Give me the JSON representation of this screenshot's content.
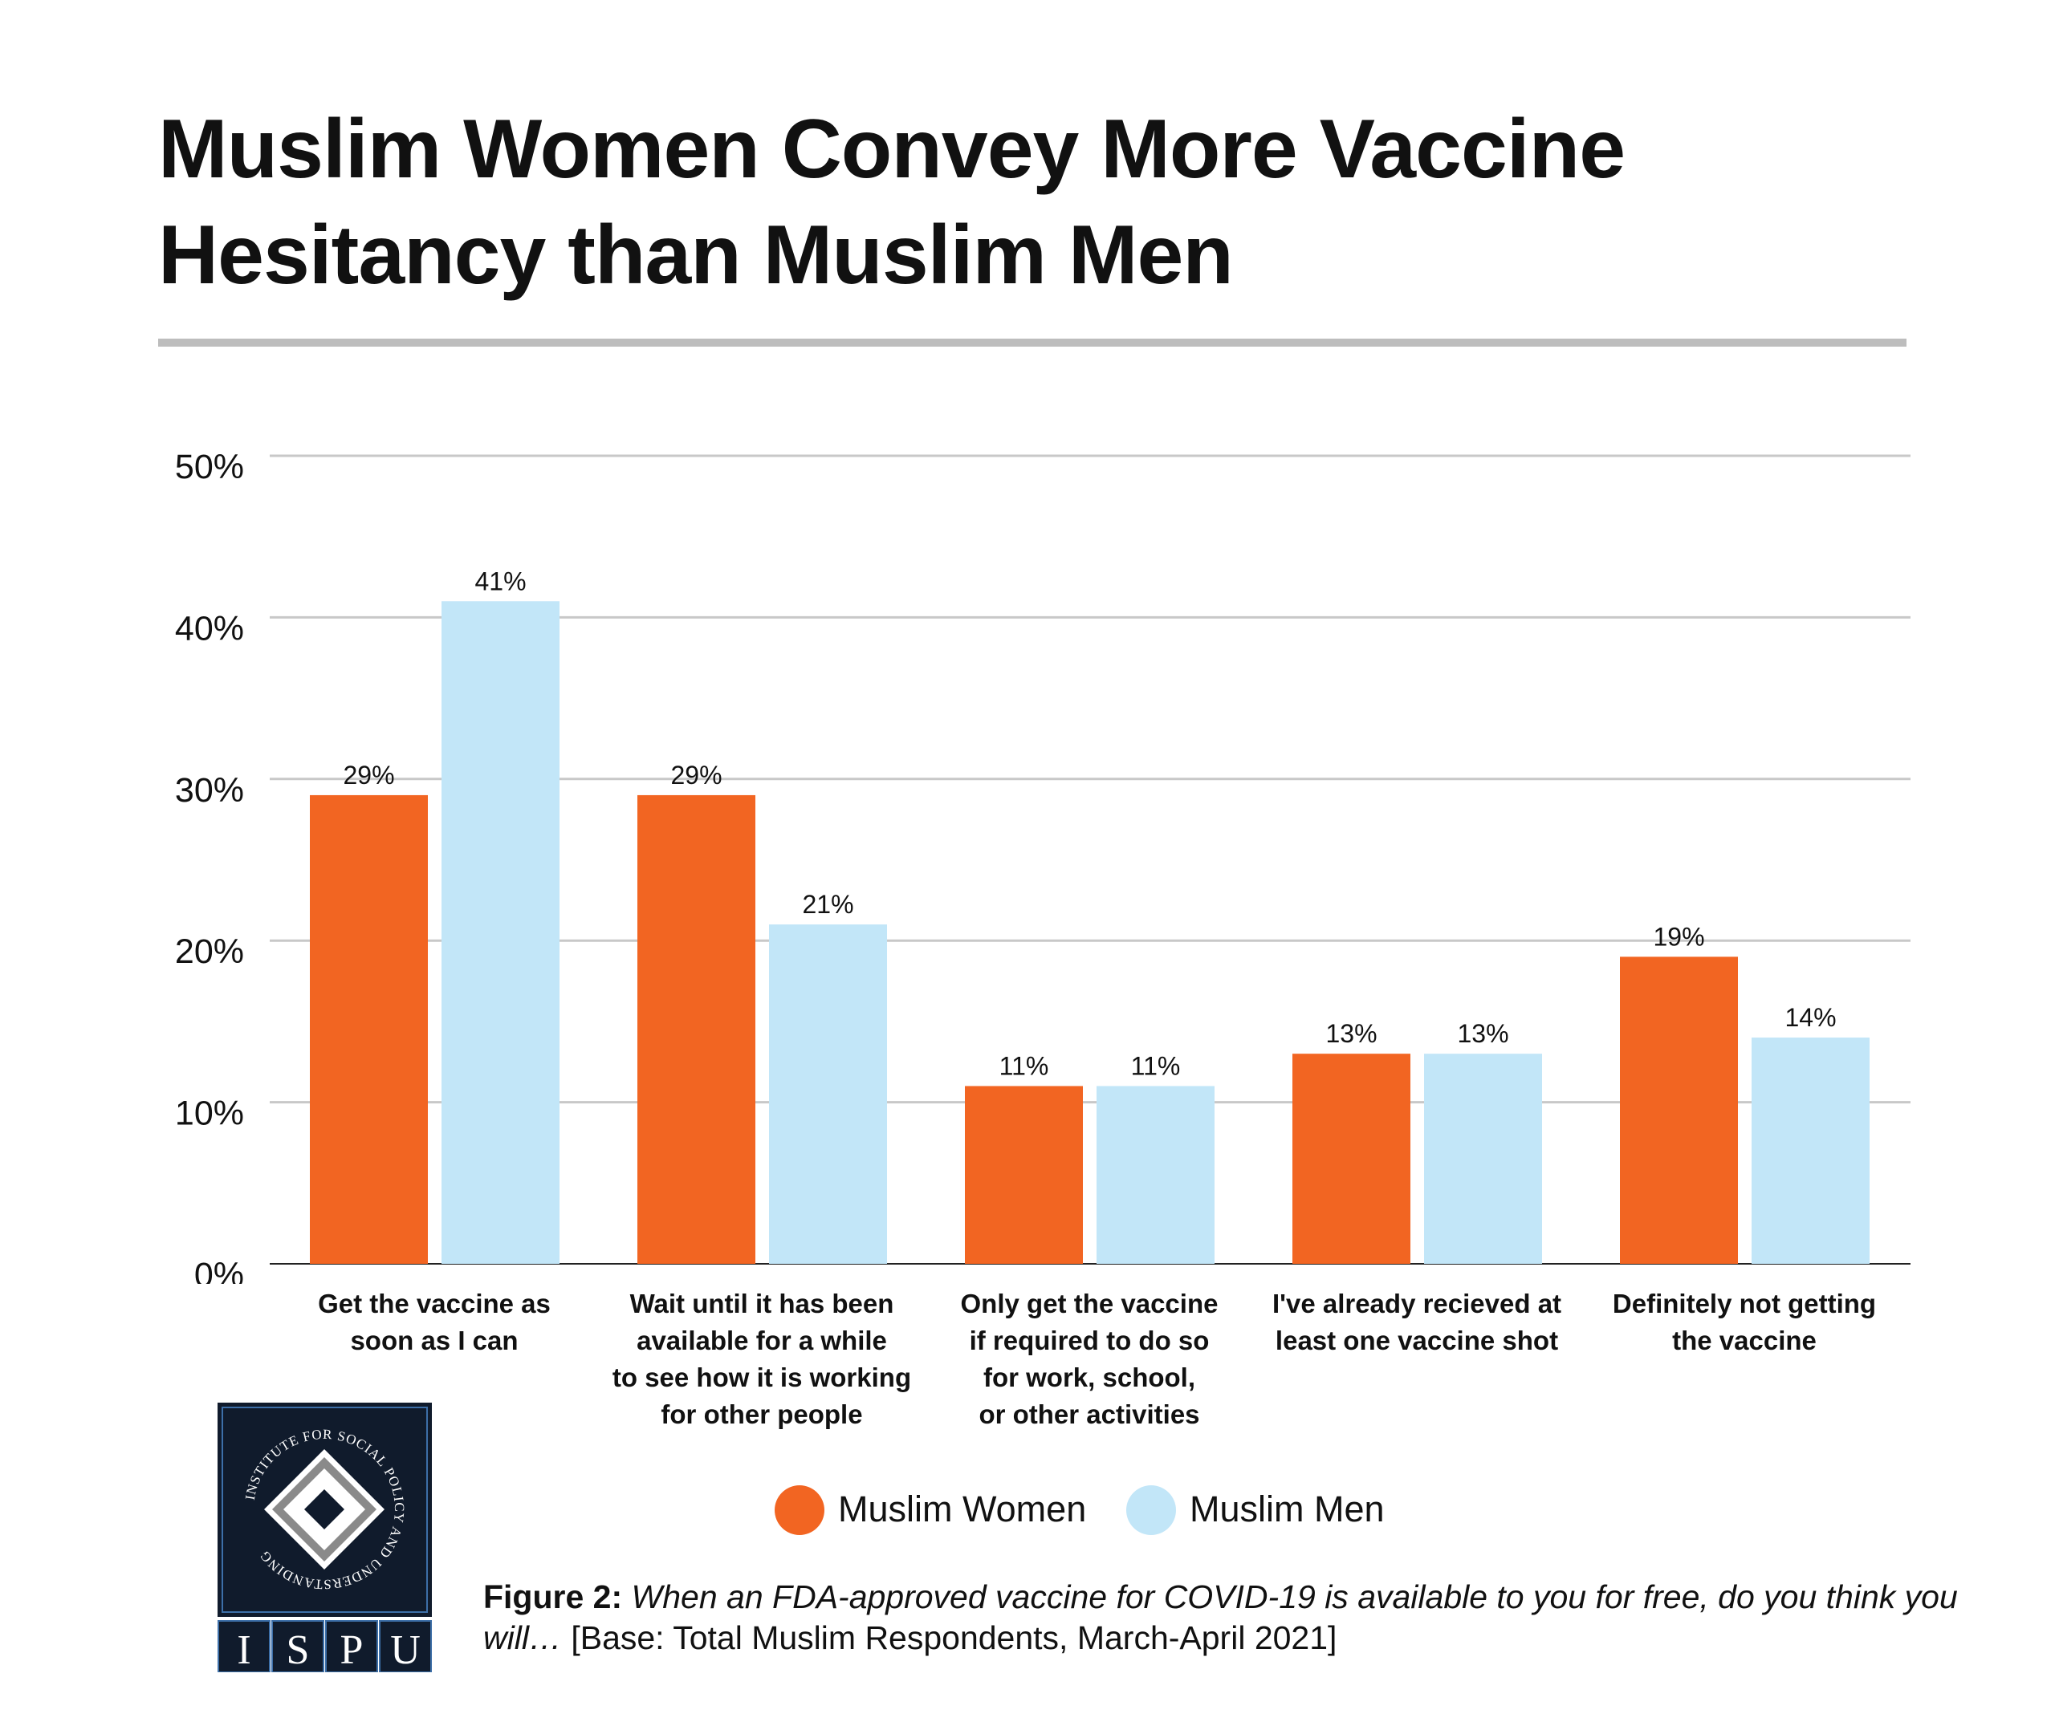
{
  "title": "Muslim Women Convey More Vaccine Hesitancy than Muslim Men",
  "colors": {
    "women": "#f26522",
    "men": "#c2e6f8",
    "grid": "#c8c8c8",
    "logo_bg": "#101b2c"
  },
  "chart_data": {
    "type": "bar",
    "title": "Muslim Women Convey More Vaccine Hesitancy than Muslim Men",
    "categories": [
      [
        "Get the vaccine as",
        "soon as I can"
      ],
      [
        "Wait until it has been",
        "available for a while",
        "to see how it is working",
        "for other people"
      ],
      [
        "Only get the vaccine",
        "if required to do so",
        "for work, school,",
        "or other activities"
      ],
      [
        "I've already recieved at",
        "least one vaccine shot"
      ],
      [
        "Definitely not getting",
        "the vaccine"
      ]
    ],
    "series": [
      {
        "name": "Muslim Women",
        "values": [
          29,
          29,
          11,
          13,
          19
        ],
        "labels": [
          "29%",
          "29%",
          "11%",
          "13%",
          "19%"
        ]
      },
      {
        "name": "Muslim Men",
        "values": [
          41,
          21,
          11,
          13,
          14
        ],
        "labels": [
          "41%",
          "21%",
          "11%",
          "13%",
          "14%"
        ]
      }
    ],
    "ylim": [
      0,
      50
    ],
    "yticks": [
      "0%",
      "10%",
      "20%",
      "30%",
      "40%",
      "50%"
    ],
    "grid": true,
    "legend": "bottom"
  },
  "legend": {
    "women": "Muslim Women",
    "men": "Muslim Men"
  },
  "caption": {
    "label": "Figure 2:",
    "question": "When an FDA-approved vaccine for COVID-19 is available to you for free, do you think you will…",
    "base": "[Base: Total Muslim Respondents, March-April 2021]"
  },
  "logo": {
    "ring_text": "INSTITUTE FOR SOCIAL POLICY AND UNDERSTANDING",
    "letters": [
      "I",
      "S",
      "P",
      "U"
    ]
  }
}
